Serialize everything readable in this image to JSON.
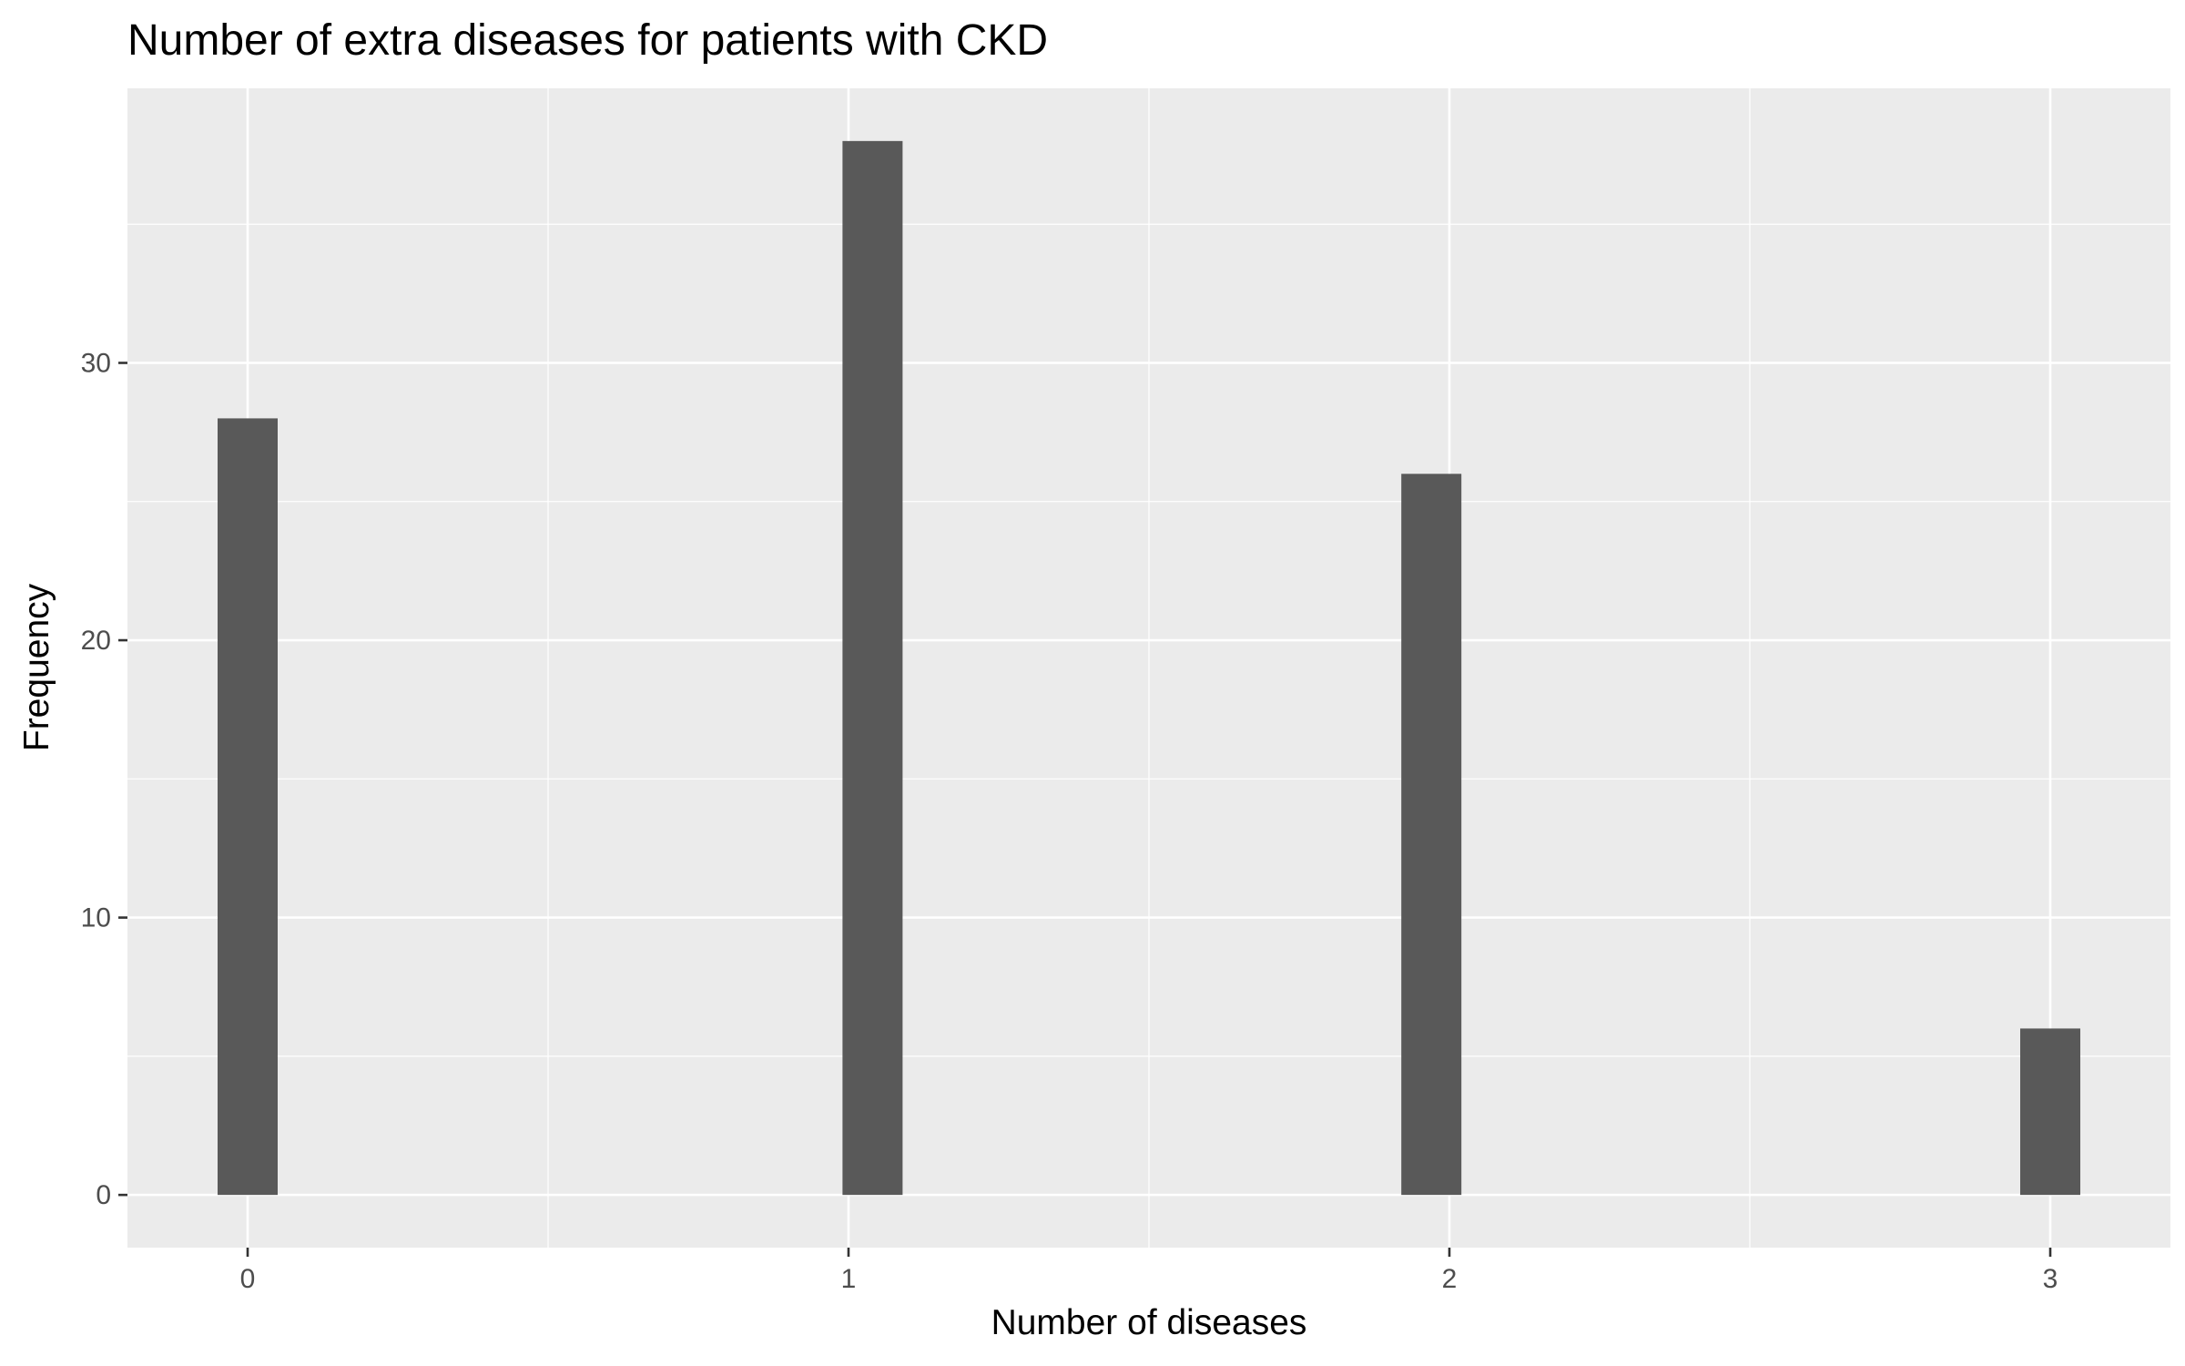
{
  "chart_data": {
    "type": "bar",
    "title": "Number of extra diseases for patients with CKD",
    "xlabel": "Number of diseases",
    "ylabel": "Frequency",
    "x_ticks": [
      "0",
      "1",
      "2",
      "3"
    ],
    "y_ticks": [
      "0",
      "10",
      "20",
      "30"
    ],
    "bars": [
      {
        "x": 0.0,
        "value": 28
      },
      {
        "x": 1.04,
        "value": 38
      },
      {
        "x": 1.97,
        "value": 26
      },
      {
        "x": 3.0,
        "value": 6
      }
    ],
    "bar_width": 0.1,
    "xlim": [
      -0.2,
      3.2
    ],
    "ylim": [
      -1.9,
      39.9
    ],
    "x_grid_major": [
      0,
      1,
      2,
      3
    ],
    "x_grid_minor": [
      0.5,
      1.5,
      2.5
    ],
    "y_grid_major": [
      0,
      10,
      20,
      30
    ],
    "y_grid_minor": [
      5,
      15,
      25,
      35
    ],
    "grid": true,
    "legend": "none",
    "colors": {
      "panel_background": "#ebebeb",
      "grid_line": "#ffffff",
      "bar_fill": "#595959",
      "tick_mark": "#333333"
    }
  }
}
